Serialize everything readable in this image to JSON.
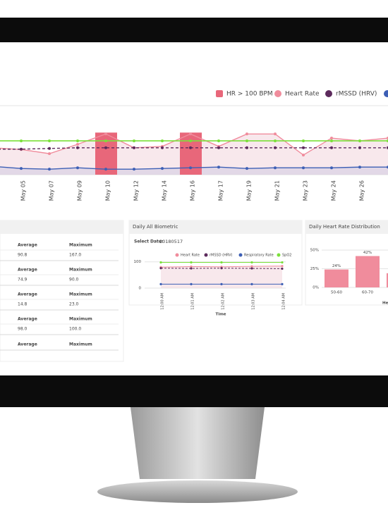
{
  "chart_data": [
    {
      "type": "line",
      "categories": [
        null,
        "May 05",
        "May 07",
        "May 09",
        "May 10",
        "May 12",
        "May 14",
        "May 16",
        "May 17",
        "May 19",
        "May 21",
        "May 23",
        "May 24",
        "May 26",
        null
      ],
      "ylim": [
        0,
        200
      ],
      "series": [
        {
          "name": "HR > 100 BPM",
          "type": "bar",
          "color": "#e8677a",
          "values": [
            null,
            null,
            null,
            null,
            122,
            null,
            null,
            122,
            null,
            null,
            null,
            null,
            null,
            null,
            null
          ]
        },
        {
          "name": "Heart Rate",
          "color": "#f08c9c",
          "values": [
            78,
            73,
            61,
            88,
            118,
            78,
            82,
            118,
            82,
            118,
            118,
            57,
            106,
            98,
            106
          ]
        },
        {
          "name": "rMSSD (HRV)",
          "color": "#5c2a5c",
          "values": [
            74,
            74,
            76,
            78,
            78,
            78,
            78,
            78,
            78,
            78,
            78,
            78,
            78,
            78,
            78
          ]
        },
        {
          "color": "#3d5fb5",
          "values": [
            24,
            18,
            16,
            20,
            16,
            16,
            18,
            20,
            22,
            18,
            20,
            20,
            20,
            22,
            22
          ]
        },
        {
          "color": "#7be03a",
          "values": [
            98,
            98,
            98,
            98,
            98,
            98,
            98,
            98,
            98,
            98,
            98,
            98,
            98,
            98,
            98
          ]
        }
      ]
    },
    {
      "type": "line",
      "title": "Daily All Biometric",
      "categories": [
        "12:00 AM",
        "12:01 AM",
        "12:02 AM",
        "12:03 AM",
        "12:04 AM"
      ],
      "xlabel": "Time",
      "ylim": [
        0,
        110
      ],
      "yticks": [
        0,
        100
      ],
      "series": [
        {
          "name": "Heart Rate",
          "color": "#f08c9c",
          "values": [
            80,
            82,
            81,
            83,
            84
          ]
        },
        {
          "name": "rMSSD (HRV)",
          "color": "#5c2a5c",
          "values": [
            76,
            75,
            76,
            75,
            74
          ]
        },
        {
          "name": "Respiratory Rate",
          "color": "#3d5fb5",
          "values": [
            15,
            15,
            15,
            15,
            15
          ]
        },
        {
          "name": "SpO2",
          "color": "#7be03a",
          "values": [
            98,
            98,
            98,
            98,
            98
          ]
        }
      ]
    },
    {
      "type": "bar",
      "title": "Daily Heart Rate Distribution",
      "categories": [
        "50-60",
        "60-70",
        null
      ],
      "values": [
        24,
        42,
        19
      ],
      "value_labels": [
        "24%",
        "42%",
        null
      ],
      "color": "#f08c9c",
      "xlabel": "Heart Rate",
      "ylim": [
        0,
        50
      ],
      "yticks": [
        {
          "value": 0,
          "label": "0%"
        },
        {
          "value": 25,
          "label": "25%"
        },
        {
          "value": 50,
          "label": "50%"
        }
      ]
    }
  ],
  "select_date": {
    "label": "Select Date:",
    "value": "20180517"
  },
  "table": {
    "rows": [
      [
        "Average",
        "Maximum"
      ],
      [
        "90.8",
        "167.0"
      ],
      [
        "Average",
        "Maximum"
      ],
      [
        "74.9",
        "90.0"
      ],
      [
        "Average",
        "Maximum"
      ],
      [
        "14.8",
        "23.0"
      ],
      [
        "Average",
        "Maximum"
      ],
      [
        "98.0",
        "100.0"
      ],
      [
        "Average",
        "Maximum"
      ]
    ]
  }
}
